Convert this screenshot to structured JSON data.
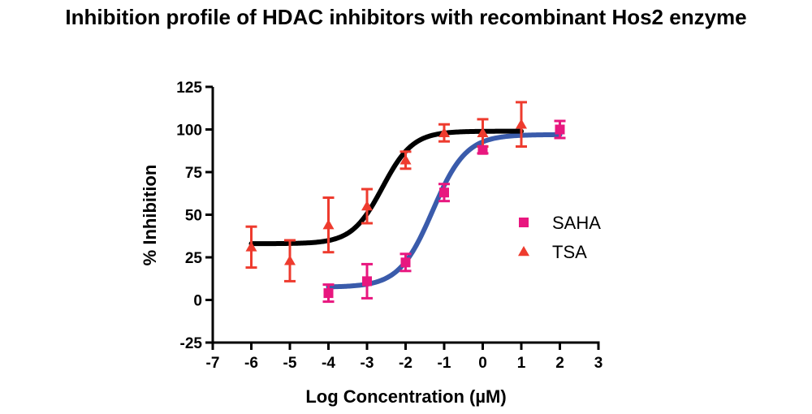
{
  "chart_data": {
    "type": "scatter",
    "title": "Inhibition profile of HDAC inhibitors with recombinant Hos2 enzyme",
    "xlabel": "Log Concentration (µM)",
    "ylabel": "% Inhibition",
    "xlim": [
      -7,
      3
    ],
    "ylim": [
      -25,
      125
    ],
    "x_ticks": [
      -7,
      -6,
      -5,
      -4,
      -3,
      -2,
      -1,
      0,
      1,
      2,
      3
    ],
    "y_ticks": [
      -25,
      0,
      25,
      50,
      75,
      100,
      125
    ],
    "grid": false,
    "legend_position": "right",
    "series": [
      {
        "name": "SAHA",
        "marker": "square",
        "color": "#e8177f",
        "curve_color": "#3a5bab",
        "points": [
          {
            "x": -4,
            "y": 4,
            "err": 5
          },
          {
            "x": -3,
            "y": 11,
            "err": 10
          },
          {
            "x": -2,
            "y": 22,
            "err": 5
          },
          {
            "x": -1,
            "y": 63,
            "err": 5
          },
          {
            "x": 0,
            "y": 88,
            "err": 2
          },
          {
            "x": 2,
            "y": 100,
            "err": 5
          }
        ],
        "fit": {
          "bottom": 7.5,
          "top": 97,
          "logEC50": -1.3,
          "hill": 1.0
        }
      },
      {
        "name": "TSA",
        "marker": "triangle",
        "color": "#ee3b2e",
        "curve_color": "#000000",
        "points": [
          {
            "x": -6,
            "y": 31,
            "err": 12
          },
          {
            "x": -5,
            "y": 23,
            "err": 12
          },
          {
            "x": -4,
            "y": 44,
            "err": 16
          },
          {
            "x": -3,
            "y": 55,
            "err": 10
          },
          {
            "x": -2,
            "y": 82,
            "err": 5
          },
          {
            "x": -1,
            "y": 98,
            "err": 5
          },
          {
            "x": 0,
            "y": 98,
            "err": 8
          },
          {
            "x": 1,
            "y": 103,
            "err": 13
          }
        ],
        "fit": {
          "bottom": 33,
          "top": 99,
          "logEC50": -2.6,
          "hill": 1.1
        }
      }
    ]
  }
}
